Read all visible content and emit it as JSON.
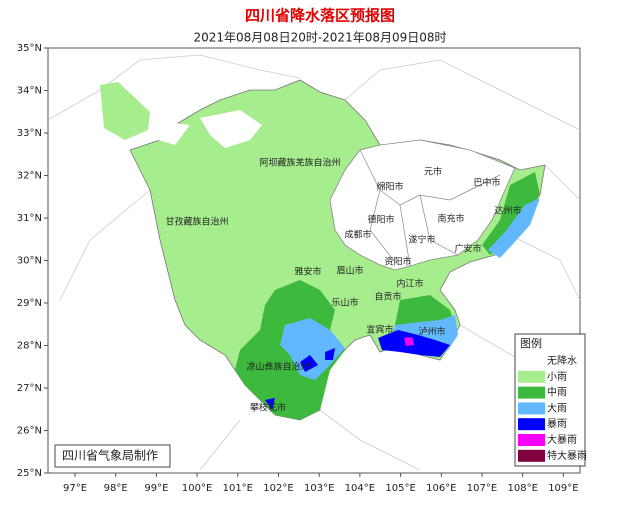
{
  "header": {
    "title": "四川省降水落区预报图",
    "subtitle": "2021年08月08日20时-2021年08月09日08时"
  },
  "axes": {
    "lat": [
      "35°N",
      "34°N",
      "33°N",
      "32°N",
      "31°N",
      "30°N",
      "29°N",
      "28°N",
      "27°N",
      "26°N",
      "25°N"
    ],
    "lon": [
      "97°E",
      "98°E",
      "99°E",
      "100°E",
      "101°E",
      "102°E",
      "103°E",
      "104°E",
      "105°E",
      "106°E",
      "107°E",
      "108°E",
      "109°E"
    ]
  },
  "places": [
    "阿坝藏族羌族自治州",
    "甘孜藏族自治州",
    "绵阳市",
    "元市",
    "巴中市",
    "达州市",
    "德阳市",
    "南充市",
    "成都市",
    "遂宁市",
    "广安市",
    "资阳市",
    "雅安市",
    "眉山市",
    "内江市",
    "乐山市",
    "自贡市",
    "宜宾市",
    "泸州市",
    "凉山彝族自治州",
    "攀枝花市"
  ],
  "legend": {
    "title": "图例",
    "items": [
      {
        "label": "无降水",
        "color": "#ffffff"
      },
      {
        "label": "小雨",
        "color": "#a6ed8e"
      },
      {
        "label": "中雨",
        "color": "#3dba3d"
      },
      {
        "label": "大雨",
        "color": "#61b8ff"
      },
      {
        "label": "暴雨",
        "color": "#0000fe"
      },
      {
        "label": "大暴雨",
        "color": "#fa00fa"
      },
      {
        "label": "特大暴雨",
        "color": "#810040"
      }
    ]
  },
  "footer": "四川省气象局制作"
}
